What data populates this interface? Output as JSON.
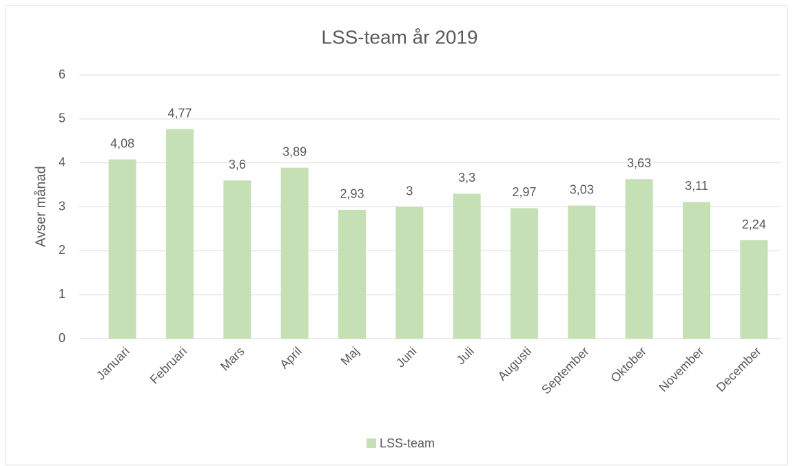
{
  "chart_data": {
    "type": "bar",
    "title": "LSS-team år 2019",
    "y_label": "Avser månad",
    "categories": [
      "Januari",
      "Februari",
      "Mars",
      "April",
      "Maj",
      "Juni",
      "Juli",
      "Augusti",
      "September",
      "Oktober",
      "November",
      "December"
    ],
    "series": [
      {
        "name": "LSS-team",
        "color": "#c5e0b4",
        "values": [
          4.08,
          4.77,
          3.6,
          3.89,
          2.93,
          3,
          3.3,
          2.97,
          3.03,
          3.63,
          3.11,
          2.24
        ],
        "value_labels": [
          "4,08",
          "4,77",
          "3,6",
          "3,89",
          "2,93",
          "3",
          "3,3",
          "2,97",
          "3,03",
          "3,63",
          "3,11",
          "2,24"
        ]
      }
    ],
    "ylim": [
      0,
      6
    ],
    "yticks": [
      0,
      1,
      2,
      3,
      4,
      5,
      6
    ],
    "grid": true,
    "legend": "bottom"
  }
}
